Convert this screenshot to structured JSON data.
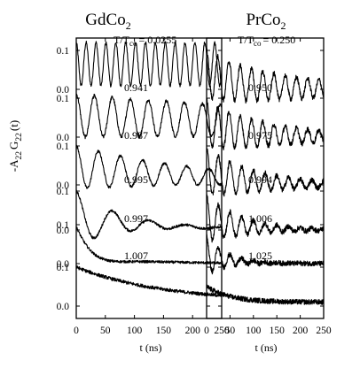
{
  "y_axis": {
    "prefix": "-A",
    "sub_a": "22",
    "mid": "G",
    "sub_b": "22",
    "suffix": "(t)"
  },
  "x_axis": {
    "label": "t (ns)",
    "ticks": [
      "0",
      "50",
      "100",
      "150",
      "200",
      "250"
    ]
  },
  "y_tick_labels": [
    "0.1",
    "0.0"
  ],
  "temp_label": {
    "prefix": "T/T",
    "sub": "co",
    "eq": "="
  },
  "panels": [
    {
      "title_main": "GdCo",
      "title_sub": "2",
      "temps": [
        "0.0255",
        "0.941",
        "0.987",
        "0.995",
        "0.997",
        "1.007"
      ]
    },
    {
      "title_main": "PrCo",
      "title_sub": "2",
      "temps": [
        "0.250",
        "0.950",
        "0.975",
        "0.994",
        "1.006",
        "1.025"
      ]
    }
  ],
  "chart_data": [
    {
      "type": "line",
      "title": "GdCo2",
      "xlabel": "t (ns)",
      "ylabel": "-A22 G22 (t)",
      "xlim": [
        0,
        250
      ],
      "ylim_per_trace": [
        -0.02,
        0.13
      ],
      "series": [
        {
          "name": "T/Tco = 0.0255",
          "period_ns": 17,
          "offset": 0.065,
          "amplitude": 0.055,
          "decay_ns": 10000,
          "relax_ns": 10000,
          "noise": 0.004
        },
        {
          "name": "0.941",
          "period_ns": 31,
          "offset": 0.055,
          "amplitude": 0.055,
          "decay_ns": 800,
          "relax_ns": 1000,
          "noise": 0.004
        },
        {
          "name": "0.987",
          "period_ns": 38,
          "offset": 0.045,
          "amplitude": 0.055,
          "decay_ns": 230,
          "relax_ns": 300,
          "noise": 0.003
        },
        {
          "name": "0.995",
          "period_ns": 63,
          "offset": 0.03,
          "amplitude": 0.07,
          "decay_ns": 70,
          "relax_ns": 150,
          "noise": 0.003
        },
        {
          "name": "0.997",
          "period_ns": 200,
          "offset": 0.015,
          "amplitude": 0.08,
          "decay_ns": 25,
          "relax_ns": 120,
          "noise": 0.003
        },
        {
          "name": "1.007",
          "period_ns": 0,
          "offset": 0.0,
          "amplitude": 0.09,
          "decay_ns": 0,
          "relax_ns": 150,
          "noise": 0.004
        }
      ]
    },
    {
      "type": "line",
      "title": "PrCo2",
      "xlabel": "t (ns)",
      "ylabel": "-A22 G22 (t)",
      "xlim": [
        0,
        250
      ],
      "ylim_per_trace": [
        -0.02,
        0.13
      ],
      "series": [
        {
          "name": "T/Tco = 0.250",
          "period_ns": 24,
          "offset": 0.04,
          "amplitude": 0.06,
          "decay_ns": 250,
          "relax_ns": 80,
          "noise": 0.006
        },
        {
          "name": "0.950",
          "period_ns": 24,
          "offset": 0.035,
          "amplitude": 0.06,
          "decay_ns": 180,
          "relax_ns": 80,
          "noise": 0.006
        },
        {
          "name": "0.975",
          "period_ns": 25,
          "offset": 0.035,
          "amplitude": 0.06,
          "decay_ns": 130,
          "relax_ns": 80,
          "noise": 0.006
        },
        {
          "name": "0.994",
          "period_ns": 25,
          "offset": 0.03,
          "amplitude": 0.06,
          "decay_ns": 80,
          "relax_ns": 70,
          "noise": 0.006
        },
        {
          "name": "1.006",
          "period_ns": 25,
          "offset": 0.02,
          "amplitude": 0.05,
          "decay_ns": 40,
          "relax_ns": 60,
          "noise": 0.006
        },
        {
          "name": "1.025",
          "period_ns": 0,
          "offset": 0.0,
          "amplitude": 0.04,
          "decay_ns": 0,
          "relax_ns": 50,
          "noise": 0.006
        }
      ]
    }
  ]
}
